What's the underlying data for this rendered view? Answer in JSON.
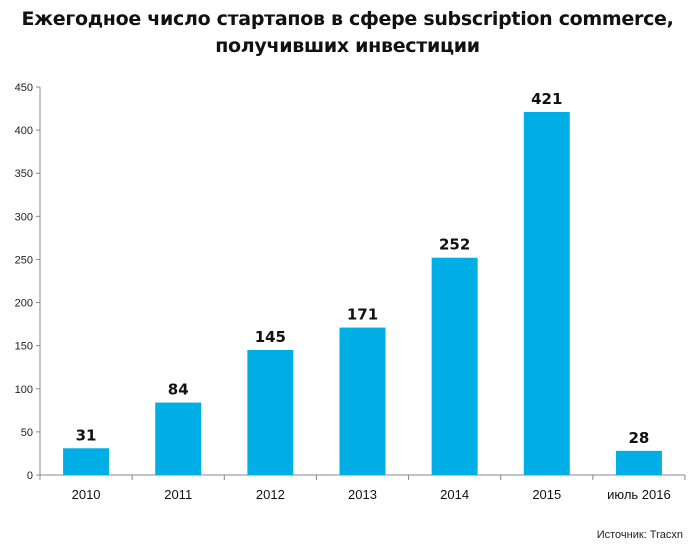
{
  "title_lines": [
    "Ежегодное число стартапов в сфере subscription commerce,",
    "получивших инвестиции"
  ],
  "source": "Источник: Tracxn",
  "colors": {
    "bar": "#00aee6",
    "axis": "#888888",
    "text": "#111111"
  },
  "chart_data": {
    "type": "bar",
    "title": "Ежегодное число стартапов в сфере subscription commerce, получивших инвестиции",
    "categories": [
      "2010",
      "2011",
      "2012",
      "2013",
      "2014",
      "2015",
      "июль 2016"
    ],
    "values": [
      31,
      84,
      145,
      171,
      252,
      421,
      28
    ],
    "ylim": [
      0,
      450
    ],
    "yticks": [
      0,
      50,
      100,
      150,
      200,
      250,
      300,
      350,
      400,
      450
    ],
    "grid": false,
    "legend": "none",
    "data_labels": true
  }
}
